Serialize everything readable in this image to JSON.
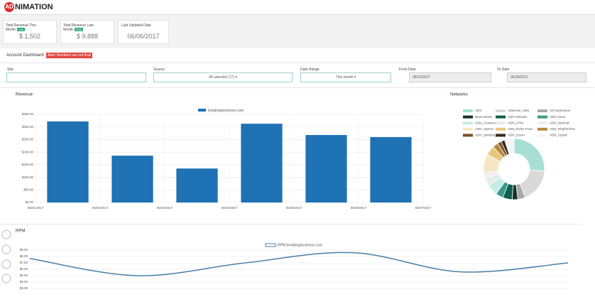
{
  "header": {
    "logo_mark": "AD",
    "logo_text": "NIMATION"
  },
  "stats": [
    {
      "label": "Total Revenue This Month",
      "badge": "Live",
      "value": "$ 1,502"
    },
    {
      "label": "Total Revenue Last Month",
      "badge": "Paid",
      "value": "$ 9,888"
    },
    {
      "label": "Last Updated Date",
      "value": "06/06/2017"
    }
  ],
  "dashboard": {
    "title": "Account Dashboard",
    "alert": "Alert: Numbers are not final"
  },
  "filters": [
    {
      "label": "Site"
    },
    {
      "label": "Source",
      "value": "All selected (17) ▾"
    },
    {
      "label": "Date Range",
      "value": "This month ▾"
    },
    {
      "label": "From Date",
      "value": "06/01/2017"
    },
    {
      "label": "To Date",
      "value": "06/30/2017"
    }
  ],
  "chart_data": [
    {
      "type": "bar",
      "title": "Revenue",
      "x_labels": [
        "06/01/2017",
        "06/02/2017",
        "06/03/2017",
        "06/04/2017",
        "06/05/2017",
        "06/06/2017",
        "06/07/2017"
      ],
      "series": [
        {
          "name": "breakingtoosimon.com",
          "color": "#1f72b4",
          "values": [
            322,
            186,
            135,
            313,
            268,
            260
          ]
        }
      ],
      "ylim": [
        0,
        350
      ],
      "yticks": [
        {
          "value": 0,
          "label": "$0.00"
        },
        {
          "value": 50,
          "label": "$50.00"
        },
        {
          "value": 100,
          "label": "$100.00"
        },
        {
          "value": 150,
          "label": "$150.00"
        },
        {
          "value": 200,
          "label": "$200.00"
        },
        {
          "value": 250,
          "label": "$250.00"
        },
        {
          "value": 300,
          "label": "$300.00"
        },
        {
          "value": 350,
          "label": "$350.00"
        }
      ],
      "grid": true
    },
    {
      "type": "pie",
      "title": "Networks",
      "categories": [
        "ADX",
        "AdSense_ADN",
        "1st Impression",
        "BeeContent",
        "ADN Sekindo",
        "ADN Sovrn",
        "ADN_Conversant",
        "ADN_CPM",
        "ADN_DistroM",
        "ADN_OpenX",
        "ADN_Pulse Point",
        "ADN_RhythmOne",
        "ADN_Sekindo_HB",
        "ADN_Sovrn",
        "ADN_Upsell"
      ],
      "colors": [
        "#a8dfd5",
        "#d9d9d9",
        "#a9a9a9",
        "#17332b",
        "#0f5e4e",
        "#3a9a8a",
        "#c4ece5",
        "#e3eeec",
        "#efefef",
        "#f5e7c3",
        "#e8c77c",
        "#b88a3e",
        "#7a5226",
        "#3b2a1a",
        "#f5f5f5"
      ],
      "values": [
        26,
        18,
        4,
        3,
        5,
        4,
        6,
        4,
        3,
        10,
        5,
        3,
        2,
        2,
        5
      ]
    },
    {
      "type": "line",
      "title": "RPM",
      "series": [
        {
          "name": "RPM breakingtoosimon.com",
          "color": "#4a7fa6",
          "values": [
            7.7,
            5.0,
            7.0,
            8.6,
            5.6,
            7.0
          ]
        }
      ],
      "ylim": [
        3,
        9
      ],
      "yticks": [
        {
          "value": 3,
          "label": "$3.00"
        },
        {
          "value": 4,
          "label": "$4.00"
        },
        {
          "value": 5,
          "label": "$5.00"
        },
        {
          "value": 6,
          "label": "$6.00"
        },
        {
          "value": 7,
          "label": "$7.00"
        },
        {
          "value": 8,
          "label": "$8.00"
        },
        {
          "value": 9,
          "label": "$9.00"
        }
      ],
      "grid": true
    }
  ]
}
